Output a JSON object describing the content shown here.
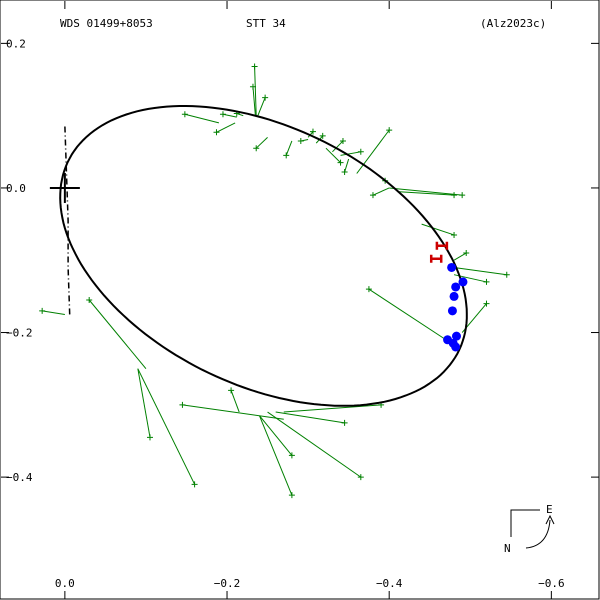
{
  "header": {
    "left": "WDS 01499+8053",
    "center": "STT  34",
    "right": "(Alz2023c)"
  },
  "compass": {
    "east_label": "E",
    "north_label": "N"
  },
  "colors": {
    "orbit": "#000000",
    "residual": "#008000",
    "measurement": "#008000",
    "speckle": "#0000ff",
    "recent": "#cc0000"
  },
  "chart_data": {
    "type": "scatter",
    "title": "",
    "xlabel": "",
    "ylabel": "",
    "xlim": [
      0.08,
      -0.66
    ],
    "ylim": [
      -0.57,
      0.26
    ],
    "x_ticks": [
      {
        "value": -0.6,
        "label": "−0.6"
      },
      {
        "value": -0.4,
        "label": "−0.4"
      },
      {
        "value": -0.2,
        "label": "−0.2"
      },
      {
        "value": 0.0,
        "label": "0.0"
      }
    ],
    "y_ticks": [
      {
        "value": 0.2,
        "label": "0.2"
      },
      {
        "value": 0.0,
        "label": "0.0"
      },
      {
        "value": -0.2,
        "label": "−0.2"
      },
      {
        "value": -0.4,
        "label": "−0.4"
      }
    ],
    "primary": {
      "x": 0.0,
      "y": 0.0
    },
    "orbit": {
      "center": [
        -0.245,
        -0.094
      ],
      "semi_axes": [
        0.275,
        0.174
      ],
      "rotation_deg": 32
    },
    "line_of_nodes": [
      [
        0.0,
        0.085
      ],
      [
        -0.002,
        0.02
      ],
      [
        -0.004,
        -0.045
      ],
      [
        -0.004,
        -0.11
      ],
      [
        -0.006,
        -0.175
      ]
    ],
    "measurements": [
      [
        -0.234,
        0.168,
        -0.236,
        0.1
      ],
      [
        -0.232,
        0.14,
        -0.235,
        0.1
      ],
      [
        -0.247,
        0.125,
        -0.238,
        0.1
      ],
      [
        -0.212,
        0.103,
        -0.22,
        0.1
      ],
      [
        -0.187,
        0.077,
        -0.21,
        0.09
      ],
      [
        -0.195,
        0.102,
        -0.212,
        0.098
      ],
      [
        -0.148,
        0.102,
        -0.19,
        0.09
      ],
      [
        -0.236,
        0.055,
        -0.25,
        0.07
      ],
      [
        -0.273,
        0.045,
        -0.28,
        0.065
      ],
      [
        -0.306,
        0.078,
        -0.3,
        0.07
      ],
      [
        -0.291,
        0.065,
        -0.3,
        0.067
      ],
      [
        -0.318,
        0.072,
        -0.31,
        0.062
      ],
      [
        -0.34,
        0.035,
        -0.322,
        0.055
      ],
      [
        -0.343,
        0.065,
        -0.33,
        0.05
      ],
      [
        -0.365,
        0.05,
        -0.34,
        0.045
      ],
      [
        -0.4,
        0.08,
        -0.36,
        0.02
      ],
      [
        -0.345,
        0.022,
        -0.35,
        0.04
      ],
      [
        -0.395,
        0.01,
        -0.395,
        0.01
      ],
      [
        -0.49,
        -0.01,
        -0.4,
        0.0
      ],
      [
        -0.38,
        -0.01,
        -0.4,
        0.0
      ],
      [
        -0.48,
        -0.01,
        -0.41,
        -0.005
      ],
      [
        -0.48,
        -0.065,
        -0.44,
        -0.05
      ],
      [
        -0.495,
        -0.09,
        -0.48,
        -0.1
      ],
      [
        -0.545,
        -0.12,
        -0.48,
        -0.11
      ],
      [
        -0.52,
        -0.13,
        -0.48,
        -0.12
      ],
      [
        -0.52,
        -0.16,
        -0.49,
        -0.2
      ],
      [
        -0.375,
        -0.14,
        -0.47,
        -0.21
      ],
      [
        -0.39,
        -0.3,
        -0.27,
        -0.31
      ],
      [
        -0.145,
        -0.3,
        -0.27,
        -0.32
      ],
      [
        -0.345,
        -0.325,
        -0.26,
        -0.31
      ],
      [
        -0.28,
        -0.37,
        -0.24,
        -0.315
      ],
      [
        -0.365,
        -0.4,
        -0.25,
        -0.31
      ],
      [
        -0.28,
        -0.425,
        -0.24,
        -0.315
      ],
      [
        -0.205,
        -0.28,
        -0.215,
        -0.31
      ],
      [
        -0.105,
        -0.345,
        -0.09,
        -0.25
      ],
      [
        -0.16,
        -0.41,
        -0.09,
        -0.25
      ],
      [
        -0.03,
        -0.155,
        -0.1,
        -0.25
      ],
      [
        0.028,
        -0.17,
        0.0,
        -0.175
      ]
    ],
    "speckle_points": [
      [
        -0.477,
        -0.11
      ],
      [
        -0.491,
        -0.13
      ],
      [
        -0.482,
        -0.137
      ],
      [
        -0.48,
        -0.15
      ],
      [
        -0.478,
        -0.17
      ],
      [
        -0.483,
        -0.205
      ],
      [
        -0.472,
        -0.21
      ],
      [
        -0.479,
        -0.215
      ],
      [
        -0.482,
        -0.22
      ]
    ],
    "recent_points": [
      [
        -0.465,
        -0.08
      ],
      [
        -0.458,
        -0.098
      ]
    ]
  }
}
